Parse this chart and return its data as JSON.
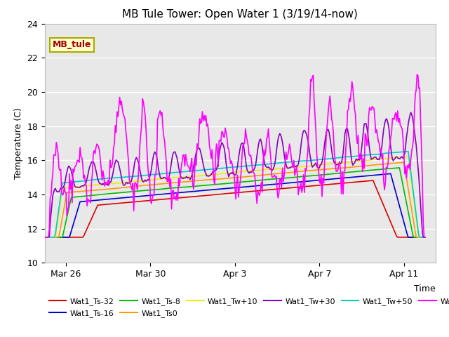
{
  "title": "MB Tule Tower: Open Water 1 (3/19/14-now)",
  "ylabel": "Temperature (C)",
  "xlabel": "Time",
  "ylim": [
    10,
    24
  ],
  "yticks": [
    10,
    12,
    14,
    16,
    18,
    20,
    22,
    24
  ],
  "background_color": "#ffffff",
  "plot_bg_color": "#e8e8e8",
  "grid_color": "#ffffff",
  "series": {
    "Wat1_Ts-32": {
      "color": "#dd0000",
      "lw": 1.2
    },
    "Wat1_Ts-16": {
      "color": "#0000cc",
      "lw": 1.2
    },
    "Wat1_Ts-8": {
      "color": "#00bb00",
      "lw": 1.2
    },
    "Wat1_Ts0": {
      "color": "#ff9900",
      "lw": 1.2
    },
    "Wat1_Tw+10": {
      "color": "#eeee00",
      "lw": 1.2
    },
    "Wat1_Tw+30": {
      "color": "#8800bb",
      "lw": 1.2
    },
    "Wat1_Tw+50": {
      "color": "#00cccc",
      "lw": 1.2
    },
    "Wat1_Tw100": {
      "color": "#ff00ff",
      "lw": 1.2
    }
  },
  "label_box": {
    "text": "MB_tule",
    "facecolor": "#ffffcc",
    "edgecolor": "#aaaa00",
    "textcolor": "#aa0000",
    "fontsize": 9,
    "fontweight": "bold"
  },
  "xtick_labels": [
    "Mar 26",
    "Mar 30",
    "Apr 3",
    "Apr 7",
    "Apr 11"
  ],
  "xtick_days": [
    1,
    5,
    9,
    13,
    17
  ],
  "xlim": [
    0,
    18.5
  ],
  "figsize": [
    6.4,
    4.8
  ],
  "dpi": 100
}
